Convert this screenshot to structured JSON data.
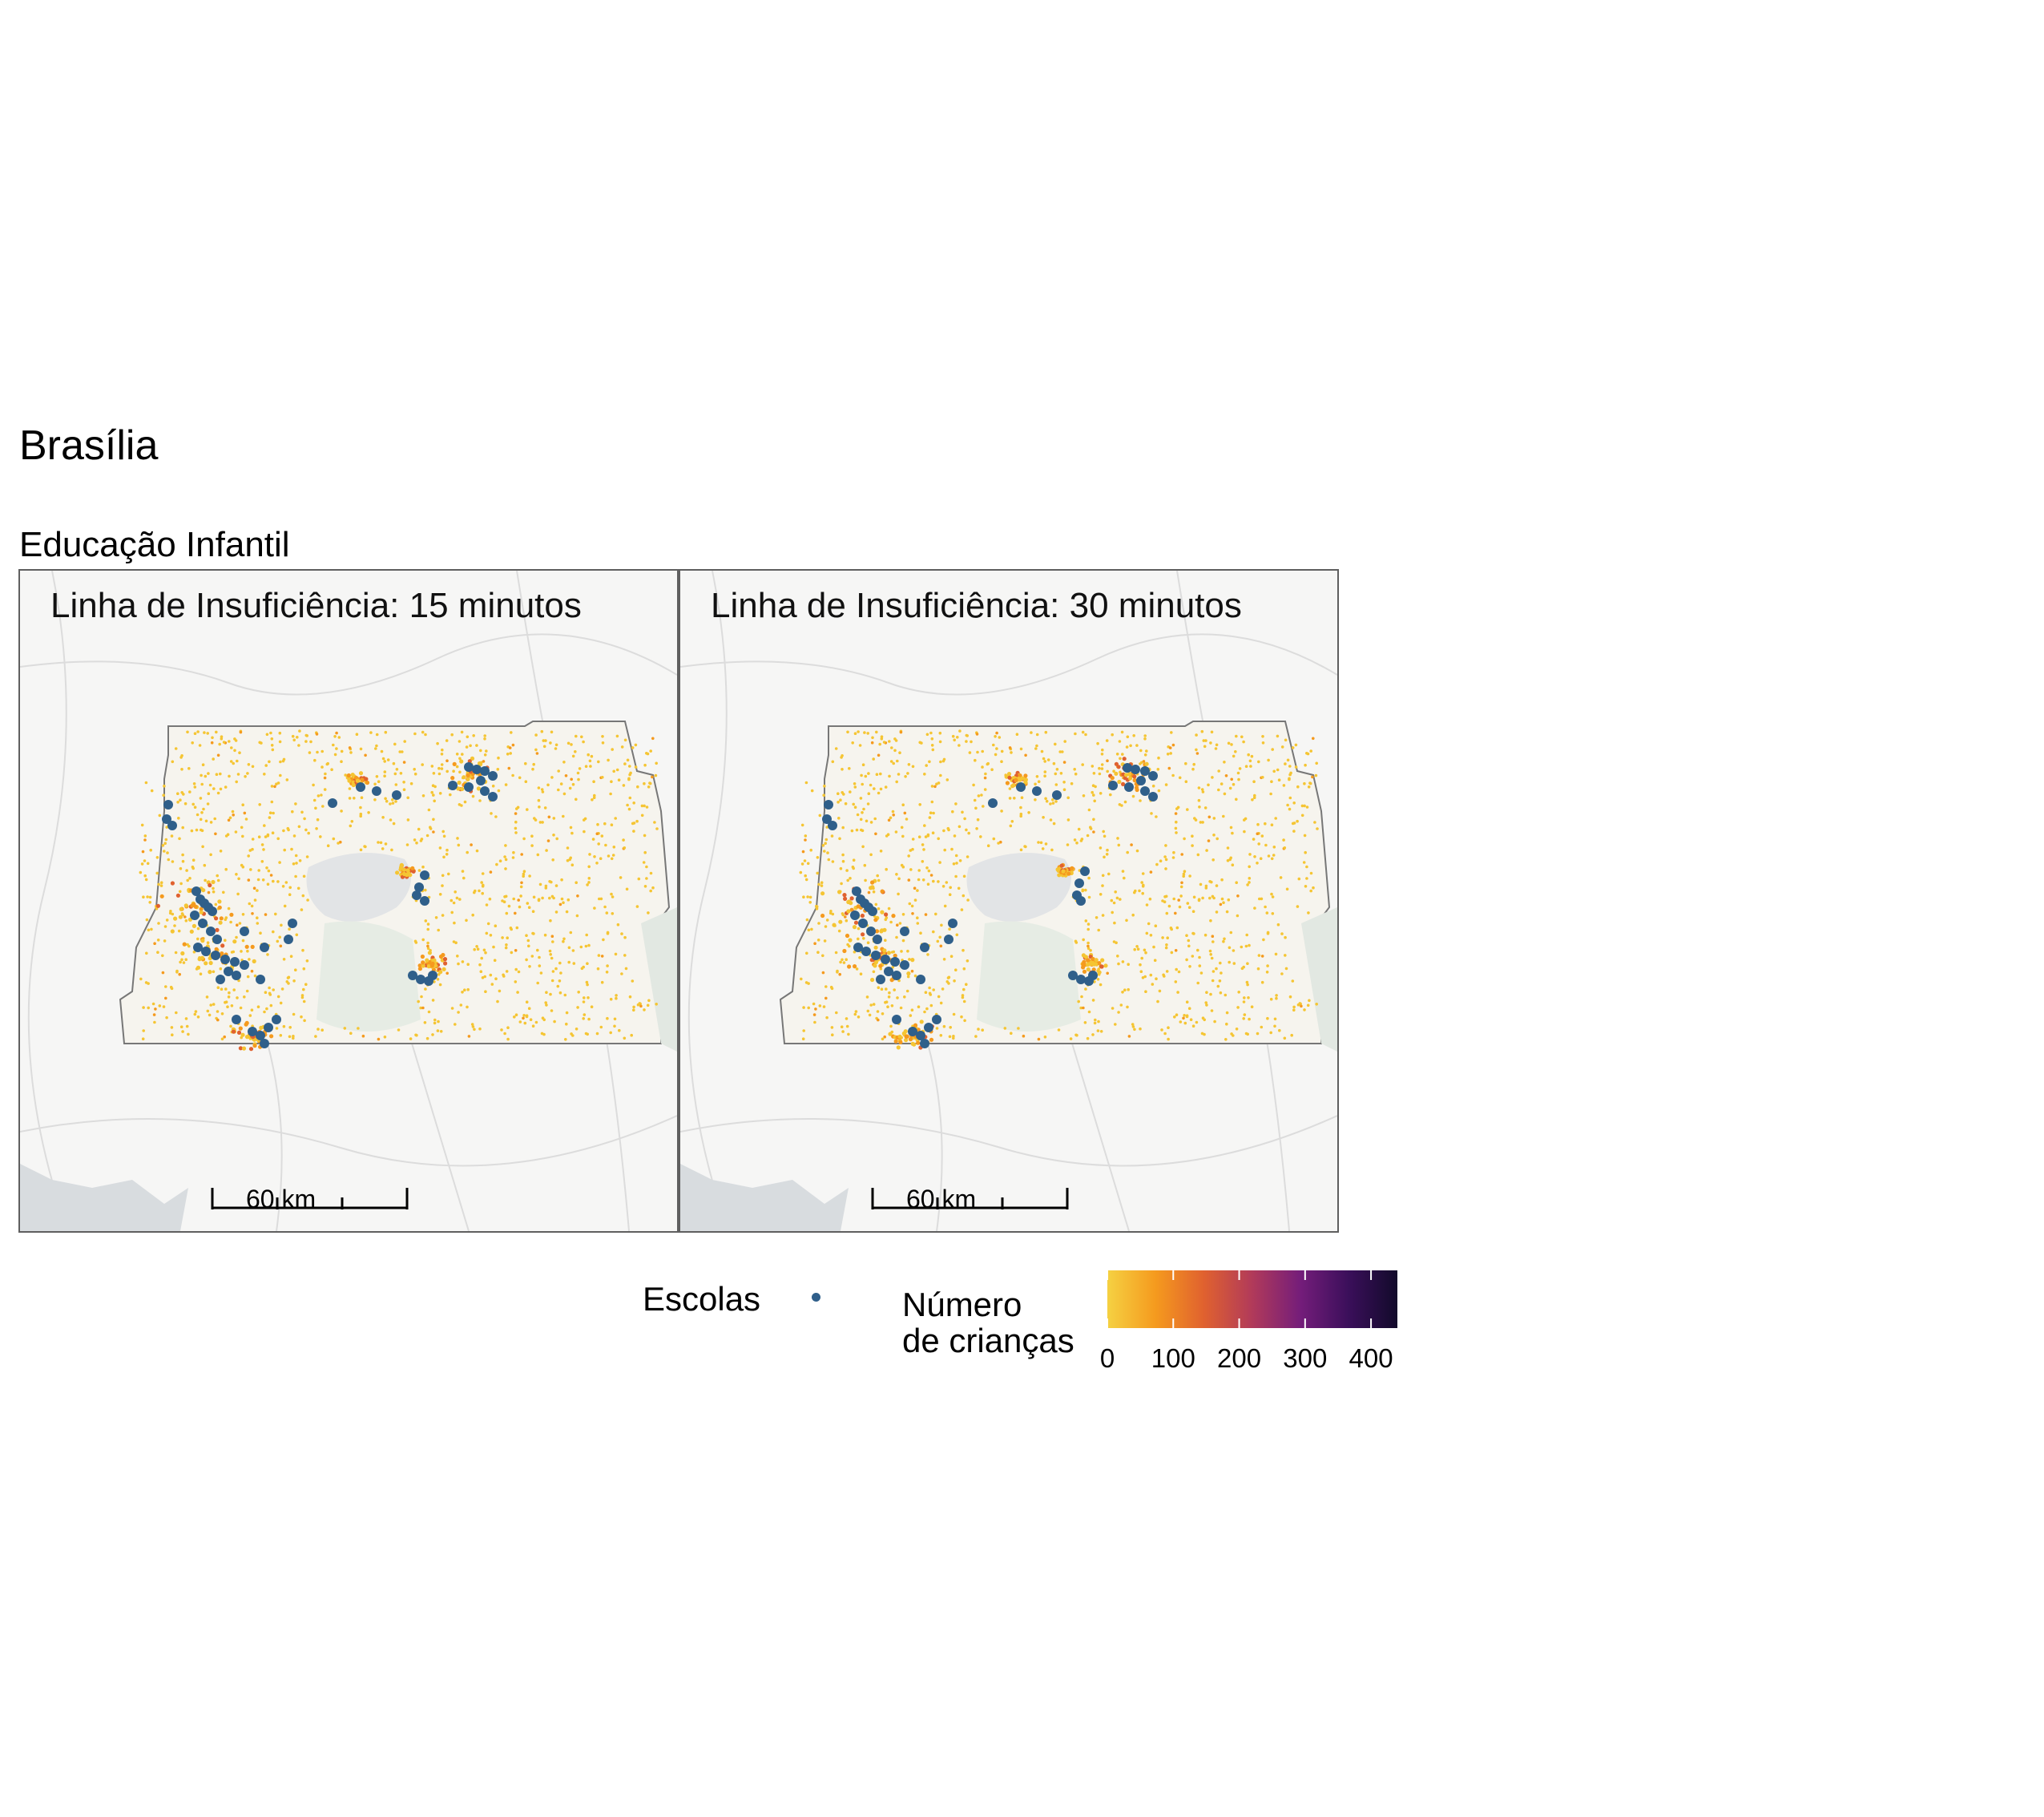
{
  "title": "Brasília",
  "subtitle": "Educação Infantil",
  "panels": [
    {
      "title": "Linha de Insuficiência: 15 minutos",
      "scale_label": "60 km"
    },
    {
      "title": "Linha de Insuficiência: 30 minutos",
      "scale_label": "60 km"
    }
  ],
  "legend": {
    "schools_label": "Escolas",
    "schools_color": "#2f5f8a",
    "count_title_line1": "Número",
    "count_title_line2": "de crianças",
    "colorbar_ticks": [
      "0",
      "100",
      "200",
      "300",
      "400"
    ],
    "colorbar_tick_values": [
      0,
      100,
      200,
      300,
      400
    ],
    "colorbar_max": 440,
    "palette": [
      "#f5d142",
      "#f59a1e",
      "#e0612f",
      "#b13a5a",
      "#741d7a",
      "#3a0f5a",
      "#120a2a"
    ]
  }
}
